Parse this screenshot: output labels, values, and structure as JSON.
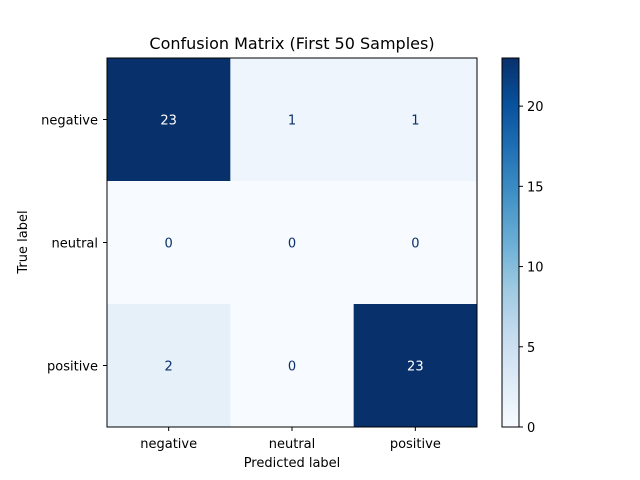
{
  "chart_data": {
    "type": "heatmap",
    "title": "Confusion Matrix (First 50 Samples)",
    "xlabel": "Predicted label",
    "ylabel": "True label",
    "x_categories": [
      "negative",
      "neutral",
      "positive"
    ],
    "y_categories": [
      "negative",
      "neutral",
      "positive"
    ],
    "matrix": [
      [
        23,
        1,
        1
      ],
      [
        0,
        0,
        0
      ],
      [
        2,
        0,
        23
      ]
    ],
    "colormap": "Blues",
    "vmin": 0,
    "vmax": 23,
    "colorbar_ticks": [
      0,
      5,
      10,
      15,
      20
    ],
    "colors": {
      "low": "#f7fbff",
      "high": "#08306b",
      "text_dark_bg": "#ffffff",
      "text_light_bg": "#08306b"
    }
  }
}
